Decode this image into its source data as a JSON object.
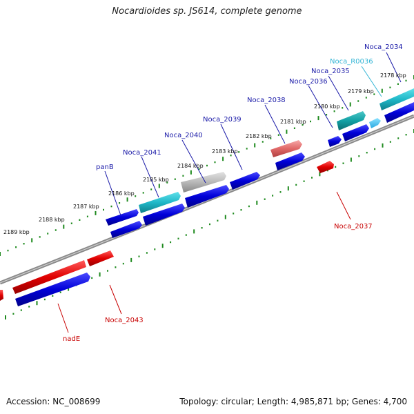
{
  "title": "Nocardioides sp. JS614, complete genome",
  "footer": {
    "accession": "Accession: NC_008699",
    "stats": "Topology: circular; Length: 4,985,871 bp; Genes: 4,700"
  },
  "colors": {
    "forward_cds": "#0000d8",
    "reverse_cds": "#e00000",
    "rna": "#20b8c8",
    "pseudogene": "#b8b8b8",
    "partial": "#e06868",
    "tick": "#1e8a1e",
    "backbone": "#8a8a8a",
    "label_forward": "#1a1aa8",
    "label_reverse": "#c80000",
    "label_rna": "#36b6d6"
  },
  "scale_labels": [
    "2178 kbp",
    "2179 kbp",
    "2180 kbp",
    "2181 kbp",
    "2182 kbp",
    "2183 kbp",
    "2184 kbp",
    "2185 kbp",
    "2186 kbp",
    "2187 kbp",
    "2188 kbp",
    "2189 kbp"
  ],
  "gene_labels": [
    {
      "name": "Noca_2034",
      "strand": "forward"
    },
    {
      "name": "Noca_R0036",
      "strand": "rna"
    },
    {
      "name": "Noca_2035",
      "strand": "forward"
    },
    {
      "name": "Noca_2036",
      "strand": "forward"
    },
    {
      "name": "Noca_2038",
      "strand": "forward"
    },
    {
      "name": "Noca_2039",
      "strand": "forward"
    },
    {
      "name": "Noca_2040",
      "strand": "forward"
    },
    {
      "name": "Noca_2041",
      "strand": "forward"
    },
    {
      "name": "panB",
      "strand": "forward"
    },
    {
      "name": "Noca_2037",
      "strand": "reverse"
    },
    {
      "name": "Noca_2043",
      "strand": "reverse"
    },
    {
      "name": "nadE",
      "strand": "reverse"
    }
  ]
}
